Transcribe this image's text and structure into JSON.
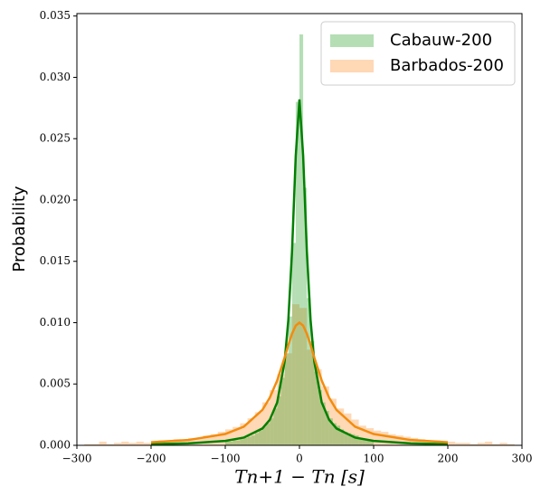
{
  "chart_data": {
    "type": "histogram",
    "ylabel": "Probability",
    "xlabel": "Tn+1 − Tn [s]",
    "xlim": [
      -300,
      300
    ],
    "ylim": [
      0,
      0.0352
    ],
    "xticks": [
      {
        "value": -300,
        "label": "−300"
      },
      {
        "value": -200,
        "label": "−200"
      },
      {
        "value": -100,
        "label": "−100"
      },
      0,
      100,
      200,
      300
    ],
    "yticks": [
      {
        "value": 0,
        "label": "0.000"
      },
      {
        "value": 0.005,
        "label": "0.005"
      },
      {
        "value": 0.01,
        "label": "0.010"
      },
      {
        "value": 0.015,
        "label": "0.015"
      },
      {
        "value": 0.02,
        "label": "0.020"
      },
      {
        "value": 0.025,
        "label": "0.025"
      },
      {
        "value": 0.03,
        "label": "0.030"
      },
      {
        "value": 0.035,
        "label": "0.035"
      }
    ],
    "legend": "upper right",
    "series": [
      {
        "name": "Barbados-200",
        "color": "#ff7f0e",
        "opacity": 0.3,
        "bins": [
          -300,
          -290,
          -280,
          -270,
          -260,
          -250,
          -240,
          -230,
          -220,
          -210,
          -200,
          -190,
          -180,
          -170,
          -160,
          -150,
          -140,
          -130,
          -120,
          -110,
          -100,
          -90,
          -80,
          -70,
          -60,
          -50,
          -40,
          -30,
          -20,
          -10,
          0,
          10,
          20,
          30,
          40,
          50,
          60,
          70,
          80,
          90,
          100,
          110,
          120,
          130,
          140,
          150,
          160,
          170,
          180,
          190,
          200,
          210,
          220,
          230,
          240,
          250,
          260,
          270,
          280,
          290,
          300
        ],
        "values": [
          0,
          0.0001,
          0.0001,
          0.0003,
          0.0001,
          0.0002,
          0.0003,
          0.0002,
          0.0003,
          0.0002,
          0.0003,
          0.0004,
          0.0004,
          0.0005,
          0.0004,
          0.0006,
          0.0006,
          0.0008,
          0.0009,
          0.0011,
          0.0013,
          0.0015,
          0.0018,
          0.0022,
          0.0027,
          0.0035,
          0.0045,
          0.0058,
          0.0075,
          0.0115,
          0.0112,
          0.0078,
          0.0062,
          0.0048,
          0.0038,
          0.003,
          0.0026,
          0.0021,
          0.0016,
          0.0014,
          0.0012,
          0.0011,
          0.0009,
          0.0008,
          0.0007,
          0.0006,
          0.0005,
          0.0004,
          0.0004,
          0.0003,
          0.0003,
          0.0002,
          0.0002,
          0.0001,
          0.0002,
          0.0003,
          0.0001,
          0.0002,
          0.0001,
          0
        ]
      },
      {
        "name": "Cabauw-200",
        "color": "#2ca02c",
        "opacity": 0.35,
        "bins": [
          -100,
          -95,
          -90,
          -85,
          -80,
          -75,
          -70,
          -65,
          -60,
          -55,
          -50,
          -45,
          -40,
          -35,
          -30,
          -25,
          -20,
          -15,
          -10,
          -5,
          0,
          5,
          10,
          15,
          20,
          25,
          30,
          35,
          40,
          45,
          50,
          55,
          60,
          65,
          70,
          75,
          80,
          85,
          90,
          95,
          100
        ],
        "values": [
          0.0003,
          0.0003,
          0.0004,
          0.0004,
          0.0005,
          0.0006,
          0.0007,
          0.0008,
          0.001,
          0.0012,
          0.0015,
          0.0018,
          0.0022,
          0.003,
          0.004,
          0.0055,
          0.0075,
          0.0105,
          0.0165,
          0.028,
          0.0335,
          0.021,
          0.012,
          0.0085,
          0.006,
          0.0045,
          0.0035,
          0.0028,
          0.0022,
          0.0018,
          0.0016,
          0.0013,
          0.0011,
          0.001,
          0.0009,
          0.0008,
          0.0006,
          0.0005,
          0.0004,
          0.0003
        ]
      }
    ],
    "curves": [
      {
        "color": "#008000",
        "x": [
          -200,
          -150,
          -100,
          -75,
          -50,
          -40,
          -30,
          -20,
          -15,
          -10,
          -5,
          0,
          5,
          10,
          15,
          20,
          30,
          40,
          50,
          75,
          100,
          150,
          200
        ],
        "values": [
          9e-05,
          0.00016,
          0.00036,
          0.00063,
          0.00137,
          0.00208,
          0.0035,
          0.00683,
          0.0102,
          0.0158,
          0.0236,
          0.0282,
          0.0236,
          0.0158,
          0.0102,
          0.00683,
          0.0035,
          0.00208,
          0.00137,
          0.00063,
          0.00036,
          0.00016,
          9e-05
        ]
      },
      {
        "color": "#f28c0f",
        "x": [
          -200,
          -150,
          -100,
          -75,
          -50,
          -40,
          -30,
          -20,
          -15,
          -10,
          -5,
          0,
          5,
          10,
          15,
          20,
          30,
          40,
          50,
          75,
          100,
          150,
          200
        ],
        "values": [
          0.00025,
          0.00043,
          0.00092,
          0.00152,
          0.00288,
          0.00388,
          0.00529,
          0.00716,
          0.00818,
          0.0091,
          0.00976,
          0.01,
          0.00976,
          0.0091,
          0.00818,
          0.00716,
          0.00529,
          0.00388,
          0.00288,
          0.00152,
          0.00092,
          0.00043,
          0.00025
        ]
      }
    ]
  }
}
